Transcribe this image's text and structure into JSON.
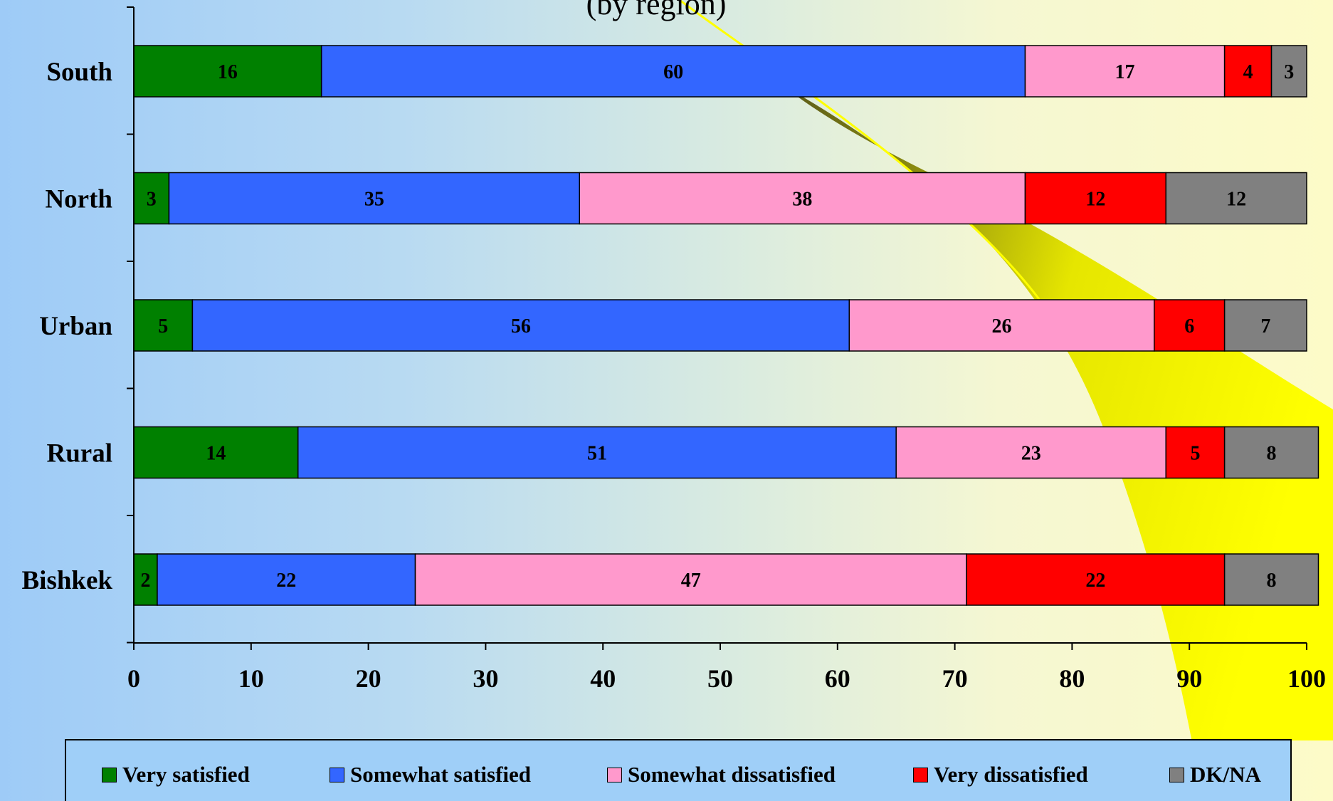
{
  "chart_data": {
    "type": "bar",
    "orientation": "horizontal",
    "stacked": true,
    "title": "(by region)",
    "categories": [
      "South",
      "North",
      "Urban",
      "Rural",
      "Bishkek"
    ],
    "series": [
      {
        "name": "Very satisfied",
        "color": "#008000",
        "label_color": "#000000",
        "values": [
          16,
          3,
          5,
          14,
          2
        ]
      },
      {
        "name": "Somewhat satisfied",
        "color": "#3366ff",
        "label_color": "#000000",
        "values": [
          60,
          35,
          56,
          51,
          22
        ]
      },
      {
        "name": "Somewhat dissatisfied",
        "color": "#ff99cc",
        "label_color": "#000000",
        "values": [
          17,
          38,
          26,
          23,
          47
        ]
      },
      {
        "name": "Very dissatisfied",
        "color": "#ff0000",
        "label_color": "#000000",
        "values": [
          4,
          12,
          6,
          5,
          22
        ]
      },
      {
        "name": "DK/NA",
        "color": "#808080",
        "label_color": "#000000",
        "values": [
          3,
          12,
          7,
          8,
          8
        ]
      }
    ],
    "xlim": [
      0,
      100
    ],
    "xticks": [
      0,
      10,
      20,
      30,
      40,
      50,
      60,
      70,
      80,
      90,
      100
    ],
    "xlabel": "",
    "ylabel": "",
    "legend_position": "bottom",
    "grid": false
  },
  "background": {
    "left_color": "#9ecbf7",
    "right_color": "#fdfbc8",
    "swoosh_color": "#ffff00"
  }
}
